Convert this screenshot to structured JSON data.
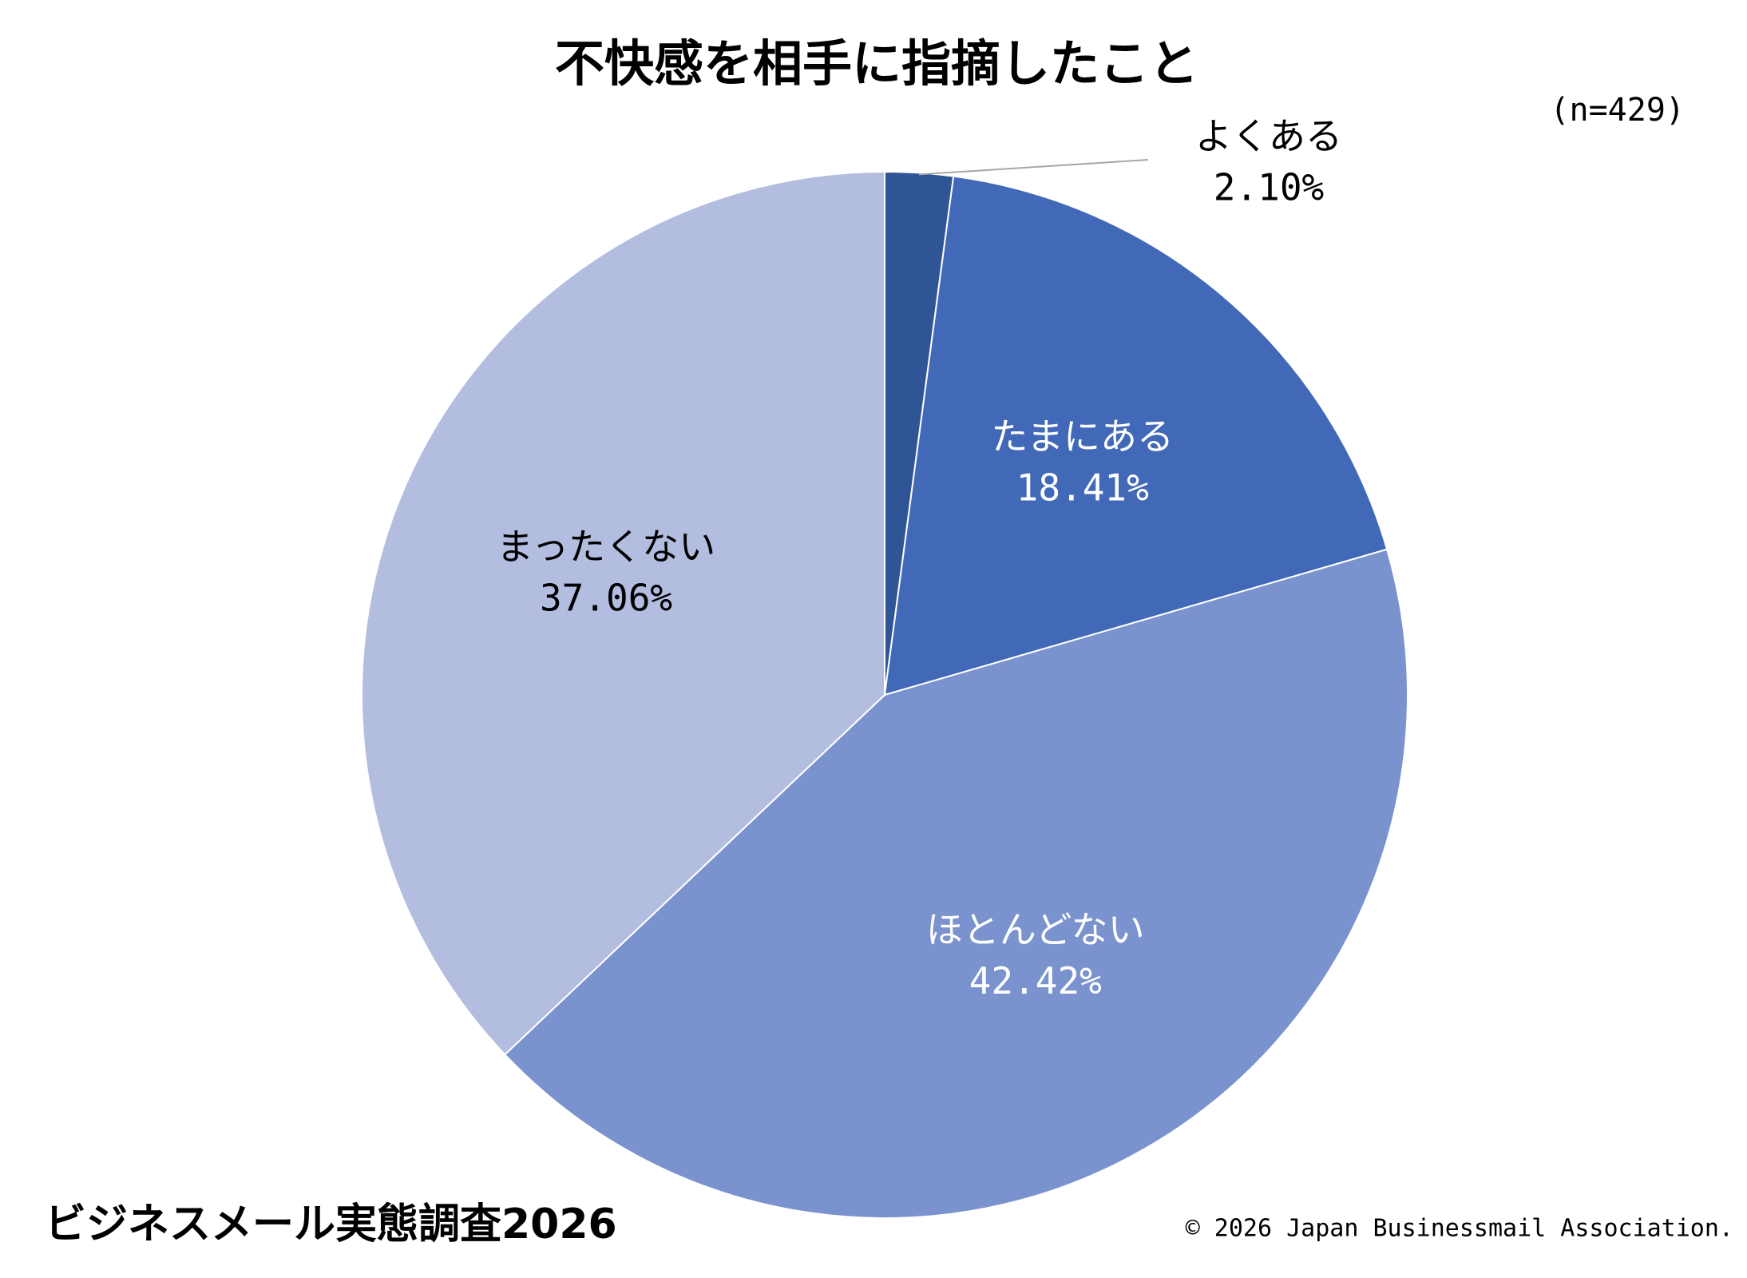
{
  "chart_data": {
    "type": "pie",
    "title": "不快感を相手に指摘したこと",
    "subtitle": "(n=429)",
    "categories": [
      "よくある",
      "たまにある",
      "ほとんどない",
      "まったくない"
    ],
    "values": [
      2.1,
      18.41,
      42.42,
      37.06
    ],
    "value_labels": [
      "2.10%",
      "18.41%",
      "42.42%",
      "37.06%"
    ],
    "colors": [
      "#2f5597",
      "#4169b8",
      "#7a92ce",
      "#b2bde0"
    ],
    "label_colors": [
      "#000000",
      "#ffffff",
      "#ffffff",
      "#000000"
    ],
    "footer": "ビジネスメール実態調査2026",
    "copyright": "© 2026 Japan Businessmail Association."
  }
}
